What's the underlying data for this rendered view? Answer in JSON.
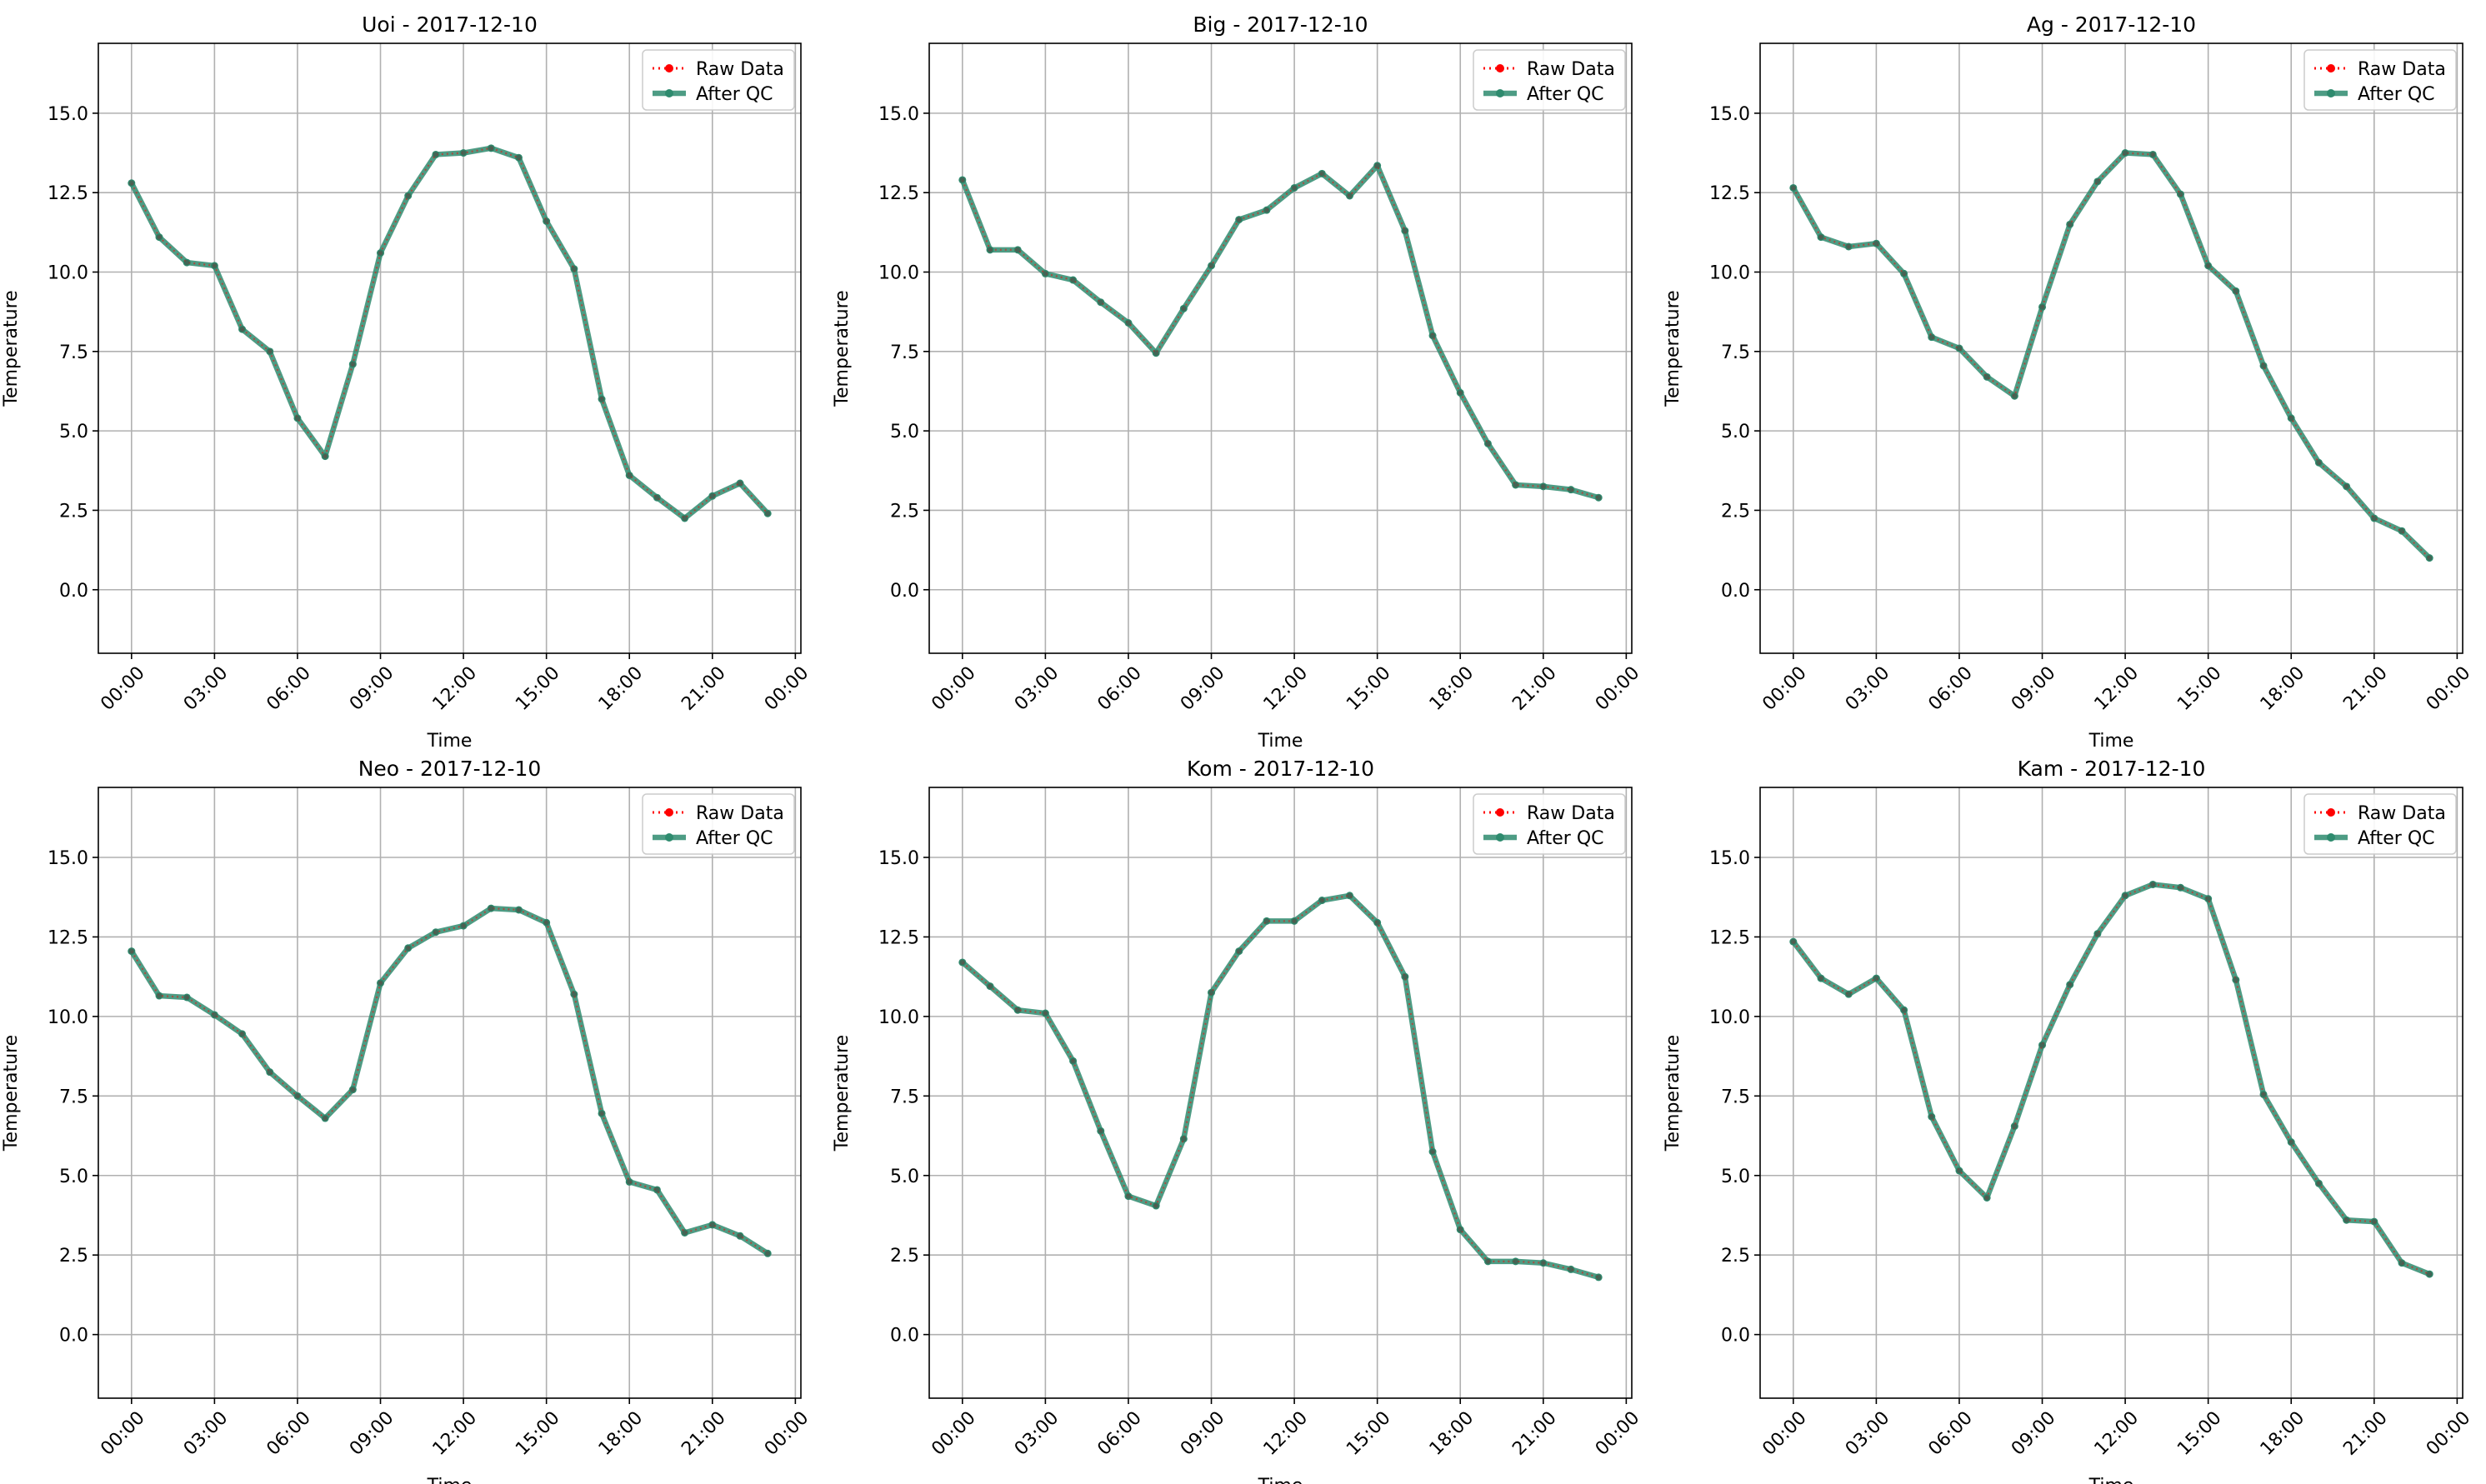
{
  "chart_data": [
    {
      "type": "line",
      "title": "Uoi - 2017-12-10",
      "xlabel": "Time",
      "ylabel": "Temperature",
      "x": [
        0,
        1,
        2,
        3,
        4,
        5,
        6,
        7,
        8,
        9,
        10,
        11,
        12,
        13,
        14,
        15,
        16,
        17,
        18,
        19,
        20,
        21,
        22,
        23
      ],
      "xtick_labels": [
        "00:00",
        "03:00",
        "06:00",
        "09:00",
        "12:00",
        "15:00",
        "18:00",
        "21:00",
        "00:00"
      ],
      "yticks": [
        "0.0",
        "2.5",
        "5.0",
        "7.5",
        "10.0",
        "12.5",
        "15.0"
      ],
      "ylim": [
        -2.0,
        17.2
      ],
      "grid": true,
      "legend_position": "top-right",
      "series": [
        {
          "name": "Raw Data",
          "color": "#ff0000",
          "style": "dotted-circle-markers",
          "values": [
            12.8,
            11.1,
            10.3,
            10.2,
            8.2,
            7.5,
            5.4,
            4.2,
            7.1,
            10.6,
            12.4,
            13.7,
            13.75,
            13.9,
            13.6,
            11.6,
            10.1,
            6.0,
            3.6,
            2.9,
            2.25,
            2.95,
            3.35,
            2.4
          ]
        },
        {
          "name": "After QC",
          "color": "#2e8b6e",
          "style": "solid-circle-markers",
          "values": [
            12.8,
            11.1,
            10.3,
            10.2,
            8.2,
            7.5,
            5.4,
            4.2,
            7.1,
            10.6,
            12.4,
            13.7,
            13.75,
            13.9,
            13.6,
            11.6,
            10.1,
            6.0,
            3.6,
            2.9,
            2.25,
            2.95,
            3.35,
            2.4
          ]
        }
      ]
    },
    {
      "type": "line",
      "title": "Big - 2017-12-10",
      "xlabel": "Time",
      "ylabel": "Temperature",
      "x": [
        0,
        1,
        2,
        3,
        4,
        5,
        6,
        7,
        8,
        9,
        10,
        11,
        12,
        13,
        14,
        15,
        16,
        17,
        18,
        19,
        20,
        21,
        22,
        23
      ],
      "xtick_labels": [
        "00:00",
        "03:00",
        "06:00",
        "09:00",
        "12:00",
        "15:00",
        "18:00",
        "21:00",
        "00:00"
      ],
      "yticks": [
        "0.0",
        "2.5",
        "5.0",
        "7.5",
        "10.0",
        "12.5",
        "15.0"
      ],
      "ylim": [
        -2.0,
        17.2
      ],
      "grid": true,
      "legend_position": "top-right",
      "series": [
        {
          "name": "Raw Data",
          "color": "#ff0000",
          "style": "dotted-circle-markers",
          "values": [
            12.9,
            10.7,
            10.7,
            9.95,
            9.75,
            9.05,
            8.4,
            7.45,
            8.85,
            10.2,
            11.65,
            11.95,
            12.65,
            13.1,
            12.4,
            13.35,
            11.3,
            8.0,
            6.2,
            4.6,
            3.3,
            3.25,
            3.15,
            2.9
          ]
        },
        {
          "name": "After QC",
          "color": "#2e8b6e",
          "style": "solid-circle-markers",
          "values": [
            12.9,
            10.7,
            10.7,
            9.95,
            9.75,
            9.05,
            8.4,
            7.45,
            8.85,
            10.2,
            11.65,
            11.95,
            12.65,
            13.1,
            12.4,
            13.35,
            11.3,
            8.0,
            6.2,
            4.6,
            3.3,
            3.25,
            3.15,
            2.9
          ]
        }
      ]
    },
    {
      "type": "line",
      "title": "Ag - 2017-12-10",
      "xlabel": "Time",
      "ylabel": "Temperature",
      "x": [
        0,
        1,
        2,
        3,
        4,
        5,
        6,
        7,
        8,
        9,
        10,
        11,
        12,
        13,
        14,
        15,
        16,
        17,
        18,
        19,
        20,
        21,
        22,
        23
      ],
      "xtick_labels": [
        "00:00",
        "03:00",
        "06:00",
        "09:00",
        "12:00",
        "15:00",
        "18:00",
        "21:00",
        "00:00"
      ],
      "yticks": [
        "0.0",
        "2.5",
        "5.0",
        "7.5",
        "10.0",
        "12.5",
        "15.0"
      ],
      "ylim": [
        -2.0,
        17.2
      ],
      "grid": true,
      "legend_position": "top-right",
      "series": [
        {
          "name": "Raw Data",
          "color": "#ff0000",
          "style": "dotted-circle-markers",
          "values": [
            12.65,
            11.1,
            10.8,
            10.9,
            9.95,
            7.95,
            7.6,
            6.7,
            6.1,
            8.9,
            11.5,
            12.85,
            13.75,
            13.7,
            12.45,
            10.2,
            9.4,
            7.05,
            5.4,
            4.0,
            3.25,
            2.25,
            1.85,
            1.0
          ]
        },
        {
          "name": "After QC",
          "color": "#2e8b6e",
          "style": "solid-circle-markers",
          "values": [
            12.65,
            11.1,
            10.8,
            10.9,
            9.95,
            7.95,
            7.6,
            6.7,
            6.1,
            8.9,
            11.5,
            12.85,
            13.75,
            13.7,
            12.45,
            10.2,
            9.4,
            7.05,
            5.4,
            4.0,
            3.25,
            2.25,
            1.85,
            1.0
          ]
        }
      ]
    },
    {
      "type": "line",
      "title": "Neo - 2017-12-10",
      "xlabel": "Time",
      "ylabel": "Temperature",
      "x": [
        0,
        1,
        2,
        3,
        4,
        5,
        6,
        7,
        8,
        9,
        10,
        11,
        12,
        13,
        14,
        15,
        16,
        17,
        18,
        19,
        20,
        21,
        22,
        23
      ],
      "xtick_labels": [
        "00:00",
        "03:00",
        "06:00",
        "09:00",
        "12:00",
        "15:00",
        "18:00",
        "21:00",
        "00:00"
      ],
      "yticks": [
        "0.0",
        "2.5",
        "5.0",
        "7.5",
        "10.0",
        "12.5",
        "15.0"
      ],
      "ylim": [
        -2.0,
        17.2
      ],
      "grid": true,
      "legend_position": "top-right",
      "series": [
        {
          "name": "Raw Data",
          "color": "#ff0000",
          "style": "dotted-circle-markers",
          "values": [
            12.05,
            10.65,
            10.6,
            10.05,
            9.45,
            8.25,
            7.5,
            6.8,
            7.7,
            11.05,
            12.15,
            12.65,
            12.85,
            13.4,
            13.35,
            12.95,
            10.7,
            6.95,
            4.8,
            4.55,
            3.2,
            3.45,
            3.1,
            2.55
          ]
        },
        {
          "name": "After QC",
          "color": "#2e8b6e",
          "style": "solid-circle-markers",
          "values": [
            12.05,
            10.65,
            10.6,
            10.05,
            9.45,
            8.25,
            7.5,
            6.8,
            7.7,
            11.05,
            12.15,
            12.65,
            12.85,
            13.4,
            13.35,
            12.95,
            10.7,
            6.95,
            4.8,
            4.55,
            3.2,
            3.45,
            3.1,
            2.55
          ]
        }
      ]
    },
    {
      "type": "line",
      "title": "Kom - 2017-12-10",
      "xlabel": "Time",
      "ylabel": "Temperature",
      "x": [
        0,
        1,
        2,
        3,
        4,
        5,
        6,
        7,
        8,
        9,
        10,
        11,
        12,
        13,
        14,
        15,
        16,
        17,
        18,
        19,
        20,
        21,
        22,
        23
      ],
      "xtick_labels": [
        "00:00",
        "03:00",
        "06:00",
        "09:00",
        "12:00",
        "15:00",
        "18:00",
        "21:00",
        "00:00"
      ],
      "yticks": [
        "0.0",
        "2.5",
        "5.0",
        "7.5",
        "10.0",
        "12.5",
        "15.0"
      ],
      "ylim": [
        -2.0,
        17.2
      ],
      "grid": true,
      "legend_position": "top-right",
      "series": [
        {
          "name": "Raw Data",
          "color": "#ff0000",
          "style": "dotted-circle-markers",
          "values": [
            11.7,
            10.95,
            10.2,
            10.1,
            8.6,
            6.4,
            4.35,
            4.05,
            6.15,
            10.75,
            12.05,
            13.0,
            13.0,
            13.65,
            13.8,
            12.95,
            11.25,
            5.75,
            3.3,
            2.3,
            2.3,
            2.25,
            2.05,
            1.8
          ]
        },
        {
          "name": "After QC",
          "color": "#2e8b6e",
          "style": "solid-circle-markers",
          "values": [
            11.7,
            10.95,
            10.2,
            10.1,
            8.6,
            6.4,
            4.35,
            4.05,
            6.15,
            10.75,
            12.05,
            13.0,
            13.0,
            13.65,
            13.8,
            12.95,
            11.25,
            5.75,
            3.3,
            2.3,
            2.3,
            2.25,
            2.05,
            1.8
          ]
        }
      ]
    },
    {
      "type": "line",
      "title": "Kam - 2017-12-10",
      "xlabel": "Time",
      "ylabel": "Temperature",
      "x": [
        0,
        1,
        2,
        3,
        4,
        5,
        6,
        7,
        8,
        9,
        10,
        11,
        12,
        13,
        14,
        15,
        16,
        17,
        18,
        19,
        20,
        21,
        22,
        23
      ],
      "xtick_labels": [
        "00:00",
        "03:00",
        "06:00",
        "09:00",
        "12:00",
        "15:00",
        "18:00",
        "21:00",
        "00:00"
      ],
      "yticks": [
        "0.0",
        "2.5",
        "5.0",
        "7.5",
        "10.0",
        "12.5",
        "15.0"
      ],
      "ylim": [
        -2.0,
        17.2
      ],
      "grid": true,
      "legend_position": "top-right",
      "series": [
        {
          "name": "Raw Data",
          "color": "#ff0000",
          "style": "dotted-circle-markers",
          "values": [
            12.35,
            11.2,
            10.7,
            11.2,
            10.2,
            6.85,
            5.15,
            4.3,
            6.55,
            9.1,
            11.0,
            12.6,
            13.8,
            14.15,
            14.05,
            13.7,
            11.15,
            7.55,
            6.05,
            4.75,
            3.6,
            3.55,
            2.25,
            1.9
          ]
        },
        {
          "name": "After QC",
          "color": "#2e8b6e",
          "style": "solid-circle-markers",
          "values": [
            12.35,
            11.2,
            10.7,
            11.2,
            10.2,
            6.85,
            5.15,
            4.3,
            6.55,
            9.1,
            11.0,
            12.6,
            13.8,
            14.15,
            14.05,
            13.7,
            11.15,
            7.55,
            6.05,
            4.75,
            3.6,
            3.55,
            2.25,
            1.9
          ]
        }
      ]
    }
  ]
}
